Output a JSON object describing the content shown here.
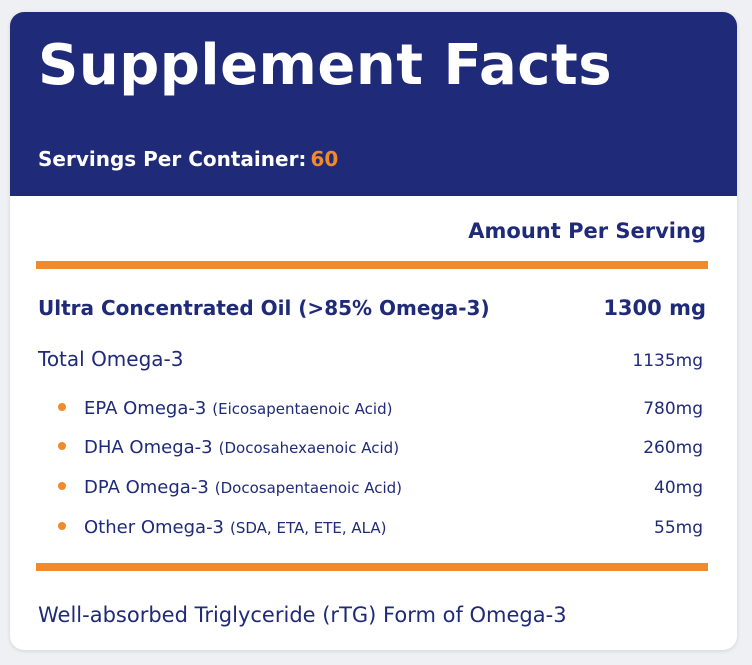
{
  "colors": {
    "navy": "#1f2a78",
    "orange": "#f08a2b",
    "background": "#eef0f3",
    "panel": "#ffffff"
  },
  "header": {
    "title": "Supplement Facts",
    "servings_label": "Servings Per Container:",
    "servings_value": "60"
  },
  "table": {
    "amount_header": "Amount Per Serving",
    "main_row": {
      "name": "Ultra Concentrated Oil (>85% Omega-3)",
      "amount": "1300 mg"
    },
    "total_row": {
      "name": "Total Omega-3",
      "amount": "1135mg"
    },
    "sub_rows": [
      {
        "name": "EPA Omega-3",
        "detail": "(Eicosapentaenoic Acid)",
        "amount": "780mg"
      },
      {
        "name": "DHA Omega-3",
        "detail": "(Docosahexaenoic Acid)",
        "amount": "260mg"
      },
      {
        "name": "DPA Omega-3",
        "detail": "(Docosapentaenoic Acid)",
        "amount": "40mg"
      },
      {
        "name": "Other Omega-3",
        "detail": "(SDA, ETA, ETE, ALA)",
        "amount": "55mg"
      }
    ]
  },
  "footer": {
    "note": "Well-absorbed Triglyceride (rTG) Form of Omega-3"
  }
}
